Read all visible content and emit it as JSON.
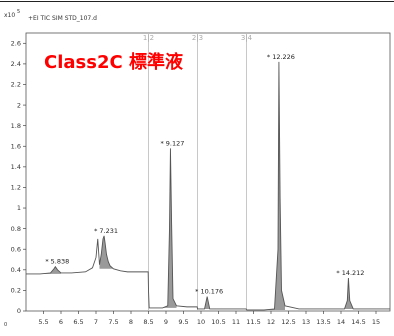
{
  "chart_data": {
    "type": "line",
    "title": "Class2C 標準液",
    "header": "+EI TIC SIM STD_107.d",
    "y_multiplier": "x10",
    "y_exponent": "5",
    "corner_label": "0",
    "xlim": [
      5.0,
      15.4
    ],
    "ylim": [
      0,
      2.7
    ],
    "x_ticks": [
      "5.5",
      "6",
      "6.5",
      "7",
      "7.5",
      "8",
      "8.5",
      "9",
      "9.5",
      "10",
      "10.5",
      "11",
      "11.5",
      "12",
      "12.5",
      "13",
      "13.5",
      "14",
      "14.5",
      "15"
    ],
    "y_ticks": [
      "0",
      "0.2",
      "0.4",
      "0.6",
      "0.8",
      "1",
      "1.2",
      "1.4",
      "1.6",
      "1.8",
      "2",
      "2.2",
      "2.4",
      "2.6"
    ],
    "segment_boundaries": [
      {
        "x": 8.5,
        "label": "1|2"
      },
      {
        "x": 9.9,
        "label": "2|3"
      },
      {
        "x": 11.3,
        "label": "3|4"
      }
    ],
    "peaks": [
      {
        "rt": 5.838,
        "label": "5.838",
        "height": 0.43
      },
      {
        "rt": 7.231,
        "label": "7.231",
        "height": 0.73
      },
      {
        "rt": 9.127,
        "label": "9.127",
        "height": 1.58
      },
      {
        "rt": 10.176,
        "label": "10.176",
        "height": 0.14
      },
      {
        "rt": 12.226,
        "label": "12.226",
        "height": 2.42
      },
      {
        "rt": 14.212,
        "label": "14.212",
        "height": 0.32
      }
    ],
    "series": [
      {
        "x": [
          5.0,
          5.4,
          5.7,
          5.8,
          5.838,
          5.9,
          6.0,
          6.3,
          6.7,
          6.9,
          7.0,
          7.05,
          7.1,
          7.15,
          7.2,
          7.231,
          7.26,
          7.3,
          7.35,
          7.4,
          7.5,
          7.7,
          7.9,
          8.2,
          8.49,
          8.5,
          8.52,
          8.9,
          9.05,
          9.1,
          9.127,
          9.16,
          9.2,
          9.3,
          9.6,
          9.89,
          9.9,
          9.92,
          10.1,
          10.176,
          10.25,
          10.5,
          11.0,
          11.29,
          11.3,
          11.32,
          11.8,
          12.1,
          12.2,
          12.226,
          12.26,
          12.3,
          12.4,
          12.8,
          13.5,
          14.1,
          14.18,
          14.212,
          14.25,
          14.35,
          14.8,
          15.4
        ],
        "y": [
          0.36,
          0.36,
          0.37,
          0.41,
          0.43,
          0.4,
          0.37,
          0.37,
          0.38,
          0.42,
          0.52,
          0.7,
          0.45,
          0.55,
          0.7,
          0.73,
          0.66,
          0.55,
          0.48,
          0.44,
          0.41,
          0.39,
          0.38,
          0.38,
          0.38,
          0.2,
          0.03,
          0.03,
          0.05,
          0.8,
          1.58,
          0.85,
          0.12,
          0.05,
          0.04,
          0.04,
          0.02,
          0.02,
          0.02,
          0.14,
          0.02,
          0.02,
          0.02,
          0.02,
          0.01,
          0.01,
          0.01,
          0.02,
          0.6,
          2.42,
          1.1,
          0.2,
          0.05,
          0.02,
          0.02,
          0.02,
          0.1,
          0.32,
          0.1,
          0.02,
          0.02,
          0.02
        ]
      }
    ],
    "grid": false,
    "colors": {
      "trace": "#555555",
      "peak_fill": "#9a9a9a",
      "title": "#ff0000",
      "segment_line": "#bbbbbb",
      "axis": "#444444"
    }
  }
}
